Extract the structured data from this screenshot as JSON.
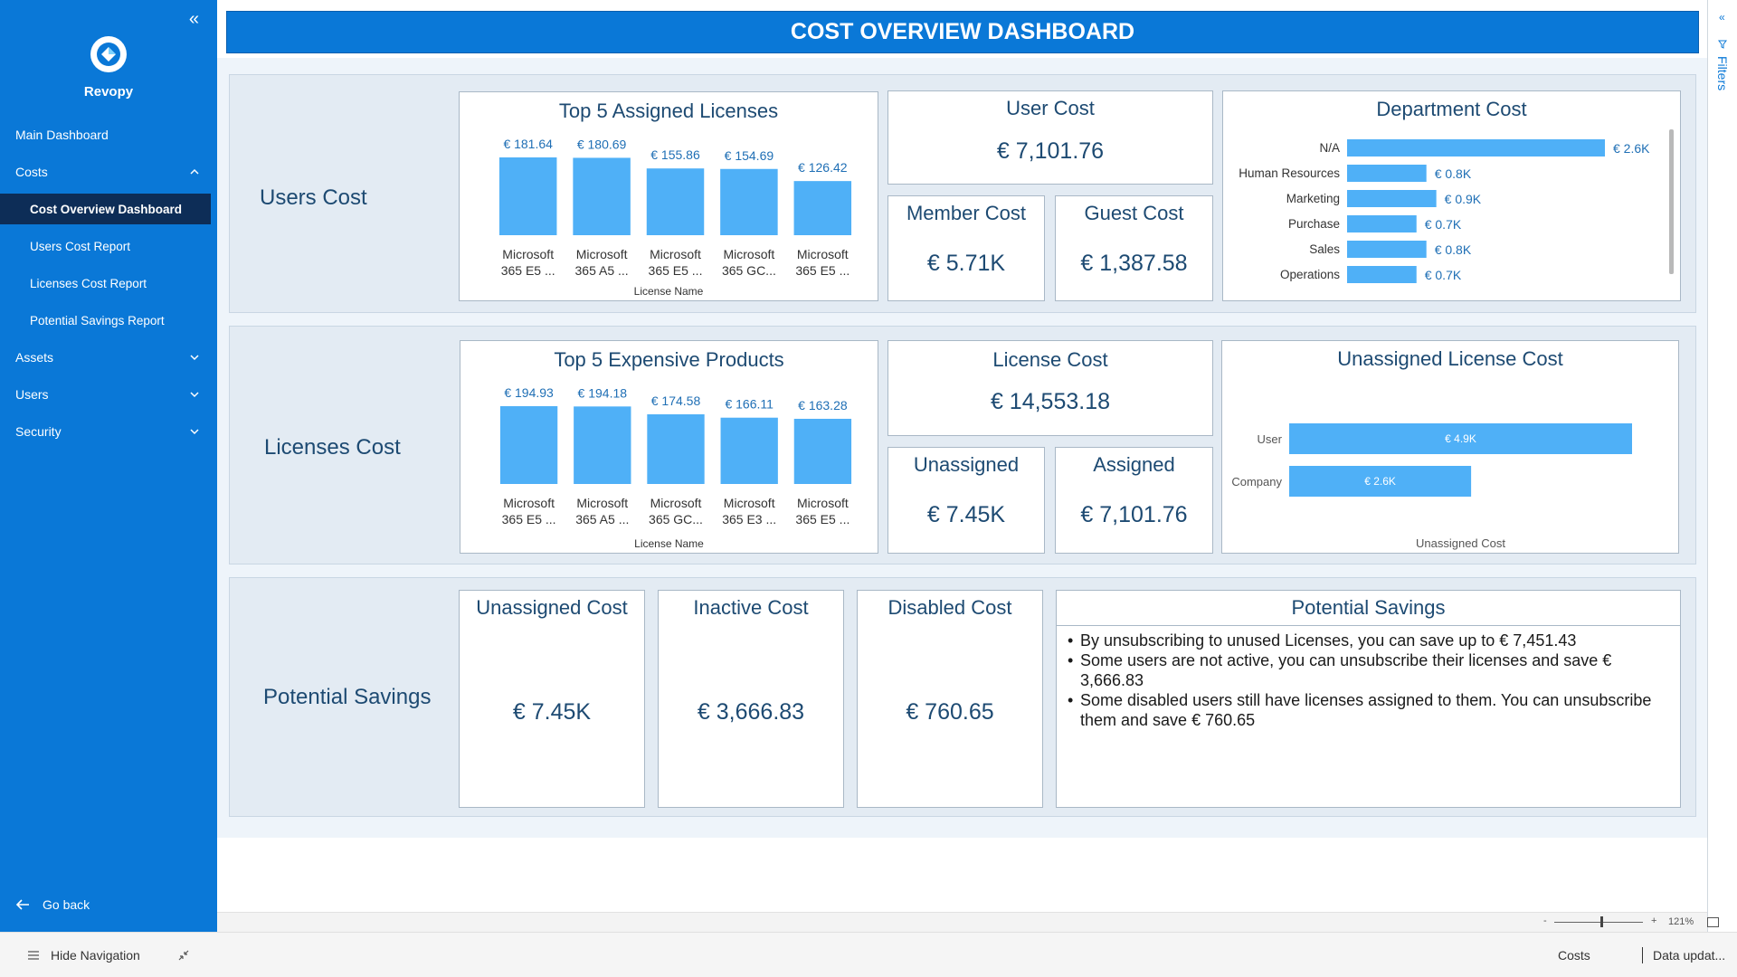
{
  "sidebar": {
    "brand": "Revopy",
    "items": [
      {
        "label": "Main Dashboard"
      },
      {
        "label": "Costs"
      },
      {
        "label": "Cost Overview Dashboard"
      },
      {
        "label": "Users Cost Report"
      },
      {
        "label": "Licenses Cost Report"
      },
      {
        "label": "Potential Savings Report"
      },
      {
        "label": "Assets"
      },
      {
        "label": "Users"
      },
      {
        "label": "Security"
      }
    ],
    "go_back": "Go back"
  },
  "dashboard": {
    "title": "COST OVERVIEW DASHBOARD",
    "sections": {
      "users": "Users Cost",
      "licenses": "Licenses Cost",
      "savings": "Potential Savings"
    },
    "cards": {
      "user_cost": {
        "title": "User Cost",
        "value": "€ 7,101.76"
      },
      "member_cost": {
        "title": "Member Cost",
        "value": "€ 5.71K"
      },
      "guest_cost": {
        "title": "Guest Cost",
        "value": "€ 1,387.58"
      },
      "license_cost": {
        "title": "License Cost",
        "value": "€ 14,553.18"
      },
      "unassigned": {
        "title": "Unassigned",
        "value": "€ 7.45K"
      },
      "assigned": {
        "title": "Assigned",
        "value": "€ 7,101.76"
      },
      "unassigned_cost": {
        "title": "Unassigned Cost",
        "value": "€ 7.45K"
      },
      "inactive_cost": {
        "title": "Inactive Cost",
        "value": "€ 3,666.83"
      },
      "disabled_cost": {
        "title": "Disabled Cost",
        "value": "€ 760.65"
      }
    },
    "potential_savings": {
      "title": "Potential Savings",
      "items": [
        "By unsubscribing to unused Licenses, you can save up to € 7,451.43",
        "Some users are not active, you can unsubscribe their licenses and save € 3,666.83",
        "Some disabled users still have licenses assigned to them. You can unsubscribe them and save € 760.65"
      ]
    }
  },
  "chart_data": [
    {
      "type": "bar",
      "title": "Top 5 Assigned Licenses",
      "xlabel": "License Name",
      "categories": [
        [
          "Microsoft",
          "365 E5 ..."
        ],
        [
          "Microsoft",
          "365 A5 ..."
        ],
        [
          "Microsoft",
          "365 E5 ..."
        ],
        [
          "Microsoft",
          "365 GC..."
        ],
        [
          "Microsoft",
          "365 E5 ..."
        ]
      ],
      "values": [
        181.64,
        180.69,
        155.86,
        154.69,
        126.42
      ],
      "data_labels": [
        "€ 181.64",
        "€ 180.69",
        "€ 155.86",
        "€ 154.69",
        "€ 126.42"
      ],
      "color": "#4fb0f7"
    },
    {
      "type": "bar",
      "title": "Top 5 Expensive Products",
      "xlabel": "License Name",
      "categories": [
        [
          "Microsoft",
          "365 E5 ..."
        ],
        [
          "Microsoft",
          "365 A5 ..."
        ],
        [
          "Microsoft",
          "365 GC..."
        ],
        [
          "Microsoft",
          "365 E3 ..."
        ],
        [
          "Microsoft",
          "365 E5 ..."
        ]
      ],
      "values": [
        194.93,
        194.18,
        174.58,
        166.11,
        163.28
      ],
      "data_labels": [
        "€ 194.93",
        "€ 194.18",
        "€ 174.58",
        "€ 166.11",
        "€ 163.28"
      ],
      "color": "#4fb0f7"
    },
    {
      "type": "bar",
      "orientation": "horizontal",
      "title": "Department Cost",
      "categories": [
        "N/A",
        "Human Resources",
        "Marketing",
        "Purchase",
        "Sales",
        "Operations"
      ],
      "values": [
        2.6,
        0.8,
        0.9,
        0.7,
        0.8,
        0.7
      ],
      "data_labels": [
        "€ 2.6K",
        "€ 0.8K",
        "€ 0.9K",
        "€ 0.7K",
        "€ 0.8K",
        "€ 0.7K"
      ],
      "color": "#4fb0f7"
    },
    {
      "type": "bar",
      "orientation": "horizontal",
      "title": "Unassigned License Cost",
      "xlabel": "Unassigned Cost",
      "categories": [
        "User",
        "Company"
      ],
      "values": [
        4.9,
        2.6
      ],
      "data_labels": [
        "€ 4.9K",
        "€ 2.6K"
      ],
      "color": "#4fb0f7"
    }
  ],
  "filters": {
    "label": "Filters"
  },
  "zoom": {
    "minus": "-",
    "plus": "+",
    "level": "121%"
  },
  "status_bar": {
    "hide_nav": "Hide Navigation",
    "page": "Costs",
    "updated": "Data updat..."
  }
}
